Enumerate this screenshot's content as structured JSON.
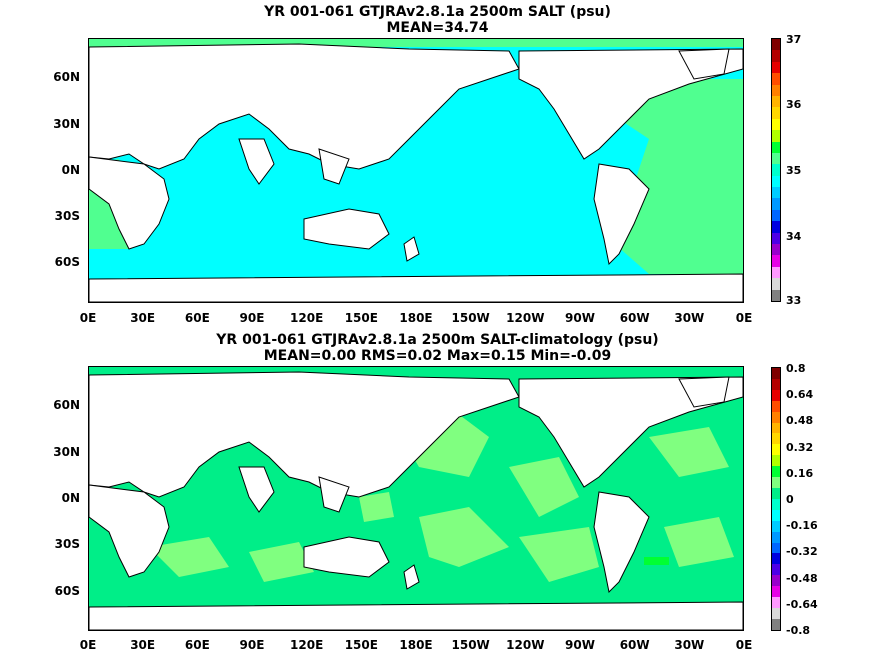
{
  "panel_top": {
    "title_line1": "YR 001-061 GTJRAv2.8.1a 2500m SALT (psu)",
    "title_line2": "MEAN=34.74",
    "lat_labels": [
      "60N",
      "30N",
      "0N",
      "30S",
      "60S"
    ],
    "lon_labels": [
      "0E",
      "30E",
      "60E",
      "90E",
      "120E",
      "150E",
      "180E",
      "150W",
      "120W",
      "90W",
      "60W",
      "30W",
      "0E"
    ],
    "colorbar_labels": [
      "37",
      "36",
      "35",
      "34",
      "33"
    ],
    "colorbar_colors": [
      "#7f0000",
      "#b30000",
      "#e60000",
      "#ff4d00",
      "#ff8000",
      "#ffb300",
      "#ffd700",
      "#ffff00",
      "#b0ff00",
      "#00ff33",
      "#50ff90",
      "#00ffcc",
      "#00ffff",
      "#00ccff",
      "#0099ff",
      "#0066ff",
      "#0000e0",
      "#4d00e6",
      "#9900cc",
      "#e600e6",
      "#ff99ff",
      "#d9d9d9",
      "#808080"
    ]
  },
  "panel_bottom": {
    "title_line1": "YR 001-061 GTJRAv2.8.1a 2500m SALT-climatology (psu)",
    "title_line2": "MEAN=0.00   RMS=0.02   Max=0.15   Min=-0.09",
    "lat_labels": [
      "60N",
      "30N",
      "0N",
      "30S",
      "60S"
    ],
    "lon_labels": [
      "0E",
      "30E",
      "60E",
      "90E",
      "120E",
      "150E",
      "180E",
      "150W",
      "120W",
      "90W",
      "60W",
      "30W",
      "0E"
    ],
    "colorbar_labels": [
      "0.8",
      "0.64",
      "0.48",
      "0.32",
      "0.16",
      "0",
      "-0.16",
      "-0.32",
      "-0.48",
      "-0.64",
      "-0.8"
    ],
    "colorbar_colors": [
      "#7f0000",
      "#b30000",
      "#e60000",
      "#ff4d00",
      "#ff8000",
      "#ffb300",
      "#ffd700",
      "#ffff00",
      "#b0ff00",
      "#00ff33",
      "#80ff80",
      "#00ee88",
      "#00ffcc",
      "#00ffff",
      "#00ccff",
      "#0099ff",
      "#0066ff",
      "#0000e0",
      "#4d00e6",
      "#9900cc",
      "#e600e6",
      "#ff99ff",
      "#d9d9d9",
      "#808080"
    ]
  },
  "colors": {
    "land": "#ffffff",
    "coast": "#000000",
    "top_ocean": "#00ffff",
    "top_atlantic": "#50ff90",
    "bottom_ocean": "#00ee88",
    "bottom_patch": "#80ff80"
  }
}
